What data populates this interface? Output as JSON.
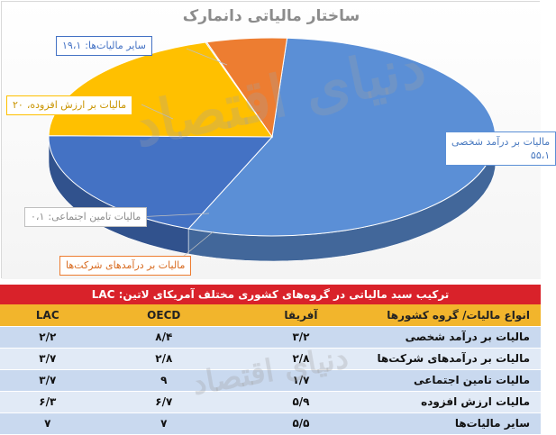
{
  "chart_data": {
    "type": "pie",
    "title": "ساختار مالیاتی دانمارک",
    "slices": [
      {
        "label": "مالیات بر درآمد شخصی",
        "value": 55.1,
        "value_text": "۵۵،۱",
        "color": "#5b8fd6"
      },
      {
        "label": "مالیات بر درآمدهای شرکت‌ها",
        "value": 5.8,
        "value_text": "",
        "color": "#ed7d31"
      },
      {
        "label": "مالیات تامین اجتماعی",
        "value": 0.1,
        "value_text": "۰،۱",
        "color": "#a5a5a5"
      },
      {
        "label": "مالیات بر ارزش افزوده",
        "value": 20,
        "value_text": "۲۰",
        "color": "#ffc000"
      },
      {
        "label": "سایر مالیات‌ها",
        "value": 19.1,
        "value_text": "۱۹،۱",
        "color": "#4472c4"
      }
    ]
  },
  "watermark": {
    "text": "دنیای اقتصاد"
  },
  "table": {
    "title": "ترکیب سبد مالیاتی در گروه‌های کشوری مختلف آمریکای لاتین: LAC",
    "headers": [
      "انواع مالیات/ گروه کشورها",
      "آفریقا",
      "OECD",
      "LAC"
    ],
    "rows": [
      [
        "مالیات بر درآمد شخصی",
        "۳/۲",
        "۸/۴",
        "۲/۲"
      ],
      [
        "مالیات بر درآمدهای شرکت‌ها",
        "۲/۸",
        "۲/۸",
        "۳/۷"
      ],
      [
        "مالیات تامین اجتماعی",
        "۱/۷",
        "۹",
        "۳/۷"
      ],
      [
        "مالیات ارزش افزوده",
        "۵/۹",
        "۶/۷",
        "۶/۳"
      ],
      [
        "سایر مالیات‌ها",
        "۵/۵",
        "۷",
        "۷"
      ]
    ]
  }
}
